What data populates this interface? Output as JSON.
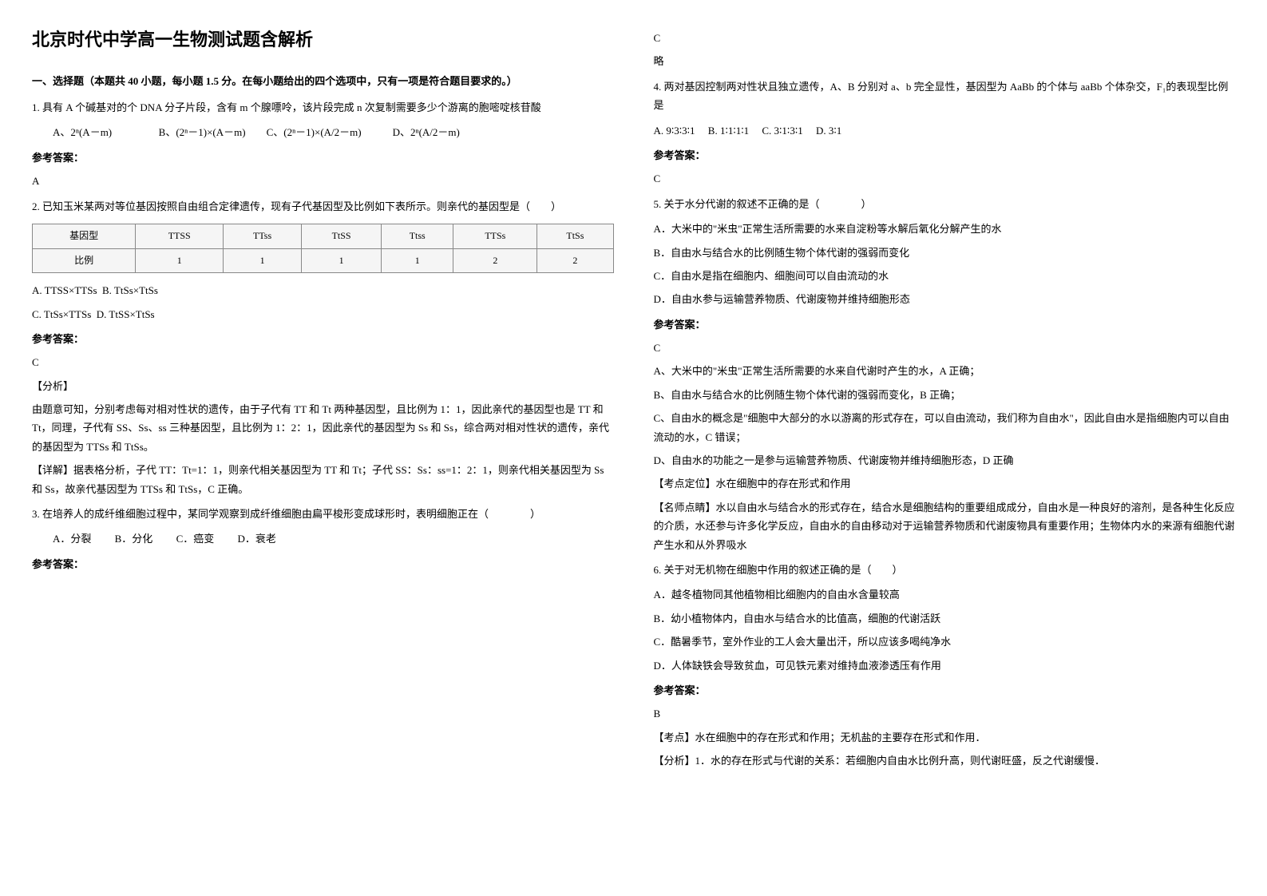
{
  "title": "北京时代中学高一生物测试题含解析",
  "section1": {
    "header": "一、选择题（本题共 40 小题，每小题 1.5 分。在每小题给出的四个选项中，只有一项是符合题目要求的。）"
  },
  "q1": {
    "text": "1. 具有 A 个碱基对的个 DNA 分子片段，含有 m 个腺嘌呤，该片段完成 n 次复制需要多少个游离的胞嘧啶核苷酸",
    "optA": "A、2ⁿ(A－m)",
    "optB": "B、(2ⁿ－1)×(A－m)",
    "optC": "C、(2ⁿ－1)×(A/2－m)",
    "optD": "D、2ⁿ(A/2－m)",
    "answer_label": "参考答案：",
    "answer": "A"
  },
  "q2": {
    "text": "2. 已知玉米某两对等位基因按照自由组合定律遗传，现有子代基因型及比例如下表所示。则亲代的基因型是（　　）",
    "table": {
      "header": [
        "基因型",
        "TTSS",
        "TTss",
        "TtSS",
        "Ttss",
        "TTSs",
        "TtSs"
      ],
      "row": [
        "比例",
        "1",
        "1",
        "1",
        "1",
        "2",
        "2"
      ]
    },
    "optA": "A. TTSS×TTSs",
    "optB": "B. TtSs×TtSs",
    "optC": "C. TtSs×TTSs",
    "optD": "D. TtSS×TtSs",
    "answer_label": "参考答案：",
    "answer": "C",
    "analysis_label": "【分析】",
    "analysis1": "由题意可知，分别考虑每对相对性状的遗传，由于子代有 TT 和 Tt 两种基因型，且比例为 1：1，因此亲代的基因型也是 TT 和 Tt，同理，子代有 SS、Ss、ss 三种基因型，且比例为 1：2：1，因此亲代的基因型为 Ss 和 Ss，综合两对相对性状的遗传，亲代的基因型为 TTSs 和 TtSs。",
    "detail_label": "【详解】据表格分析，子代 TT：Tt=1：1，则亲代相关基因型为 TT 和 Tt；子代 SS：Ss：ss=1：2：1，则亲代相关基因型为 Ss 和 Ss，故亲代基因型为 TTSs 和 TtSs，C 正确。"
  },
  "q3": {
    "text": "3. 在培养人的成纤维细胞过程中，某同学观察到成纤维细胞由扁平梭形变成球形时，表明细胞正在（　　　　）",
    "optA": "A．分裂",
    "optB": "B．分化",
    "optC": "C．癌变",
    "optD": "D．衰老",
    "answer_label": "参考答案：",
    "answer": "C",
    "brief": "略"
  },
  "q4": {
    "text": "4. 两对基因控制两对性状且独立遗传，A、B 分别对 a、b 完全显性，基因型为 AaBb 的个体与 aaBb 个体杂交，F₁的表现型比例是",
    "optA": "A. 9∶3∶3∶1",
    "optB": "B. 1∶1∶1∶1",
    "optC": "C. 3∶1∶3∶1",
    "optD": "D. 3∶1",
    "answer_label": "参考答案：",
    "answer": "C"
  },
  "q5": {
    "text": "5. 关于水分代谢的叙述不正确的是（　　　　）",
    "optA": "A．大米中的\"米虫\"正常生活所需要的水来自淀粉等水解后氧化分解产生的水",
    "optB": "B．自由水与结合水的比例随生物个体代谢的强弱而变化",
    "optC": "C．自由水是指在细胞内、细胞间可以自由流动的水",
    "optD": "D．自由水参与运输营养物质、代谢废物并维持细胞形态",
    "answer_label": "参考答案：",
    "answer": "C",
    "expA": "A、大米中的\"米虫\"正常生活所需要的水来自代谢时产生的水，A 正确；",
    "expB": "B、自由水与结合水的比例随生物个体代谢的强弱而变化，B 正确；",
    "expC": "C、自由水的概念是\"细胞中大部分的水以游离的形式存在，可以自由流动，我们称为自由水\"，因此自由水是指细胞内可以自由流动的水，C 错误；",
    "expD": "D、自由水的功能之一是参与运输营养物质、代谢废物并维持细胞形态，D 正确",
    "point_label": "【考点定位】水在细胞中的存在形式和作用",
    "teacher_label": "【名师点睛】水以自由水与结合水的形式存在，结合水是细胞结构的重要组成成分，自由水是一种良好的溶剂，是各种生化反应的介质，水还参与许多化学反应，自由水的自由移动对于运输营养物质和代谢废物具有重要作用；生物体内水的来源有细胞代谢产生水和从外界吸水"
  },
  "q6": {
    "text": "6. 关于对无机物在细胞中作用的叙述正确的是（　　）",
    "optA": "A．越冬植物同其他植物相比细胞内的自由水含量较高",
    "optB": "B．幼小植物体内，自由水与结合水的比值高，细胞的代谢活跃",
    "optC": "C．酷暑季节，室外作业的工人会大量出汗，所以应该多喝纯净水",
    "optD": "D．人体缺铁会导致贫血，可见铁元素对维持血液渗透压有作用",
    "answer_label": "参考答案：",
    "answer": "B",
    "point_label": "【考点】水在细胞中的存在形式和作用；无机盐的主要存在形式和作用．",
    "analysis_label": "【分析】1．水的存在形式与代谢的关系：若细胞内自由水比例升高，则代谢旺盛，反之代谢缓慢．"
  }
}
